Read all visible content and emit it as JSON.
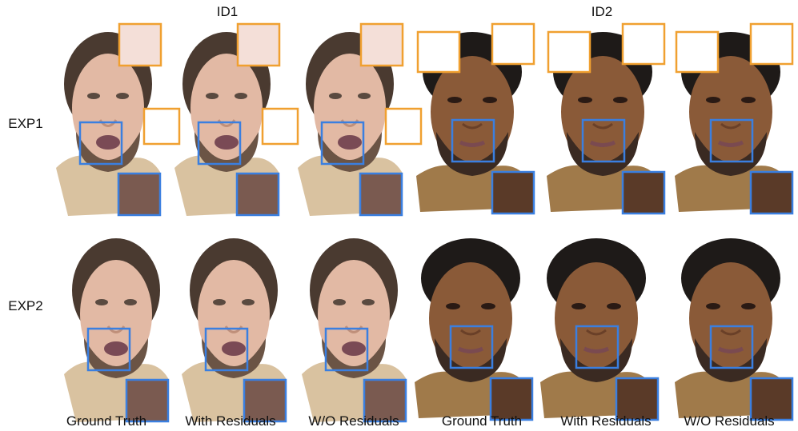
{
  "groups": [
    "ID1",
    "ID2"
  ],
  "rows": [
    "EXP1",
    "EXP2"
  ],
  "columns": [
    "Ground Truth",
    "With Residuals",
    "W/O Residuals",
    "Ground Truth",
    "With Residuals",
    "W/O Residuals"
  ]
}
